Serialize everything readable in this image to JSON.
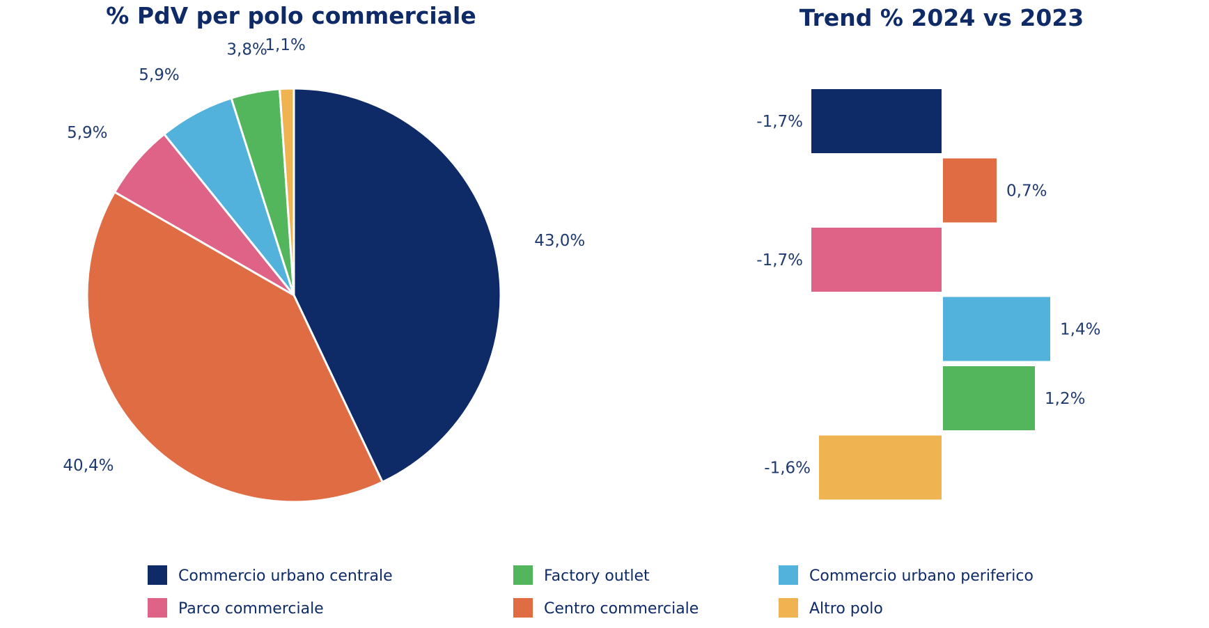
{
  "pie_title": "% PdV per polo commerciale",
  "bar_title": "Trend % 2024 vs 2023",
  "colors": {
    "title": "#0e2a67",
    "label": "#1f3a6e",
    "slice_border": "#ffffff"
  },
  "chart_data": [
    {
      "type": "pie",
      "title": "% PdV per polo commerciale",
      "categories": [
        "Commercio urbano centrale",
        "Centro commerciale",
        "Parco commerciale",
        "Commercio urbano periferico",
        "Factory outlet",
        "Altro polo"
      ],
      "values": [
        43.0,
        40.4,
        5.9,
        5.9,
        3.8,
        1.1
      ],
      "value_labels": [
        "43,0%",
        "40,4%",
        "5,9%",
        "5,9%",
        "3,8%",
        "1,1%"
      ],
      "colors": [
        "#0e2a67",
        "#e06c43",
        "#df6287",
        "#52b2dc",
        "#54b65c",
        "#f0b351"
      ],
      "start_angle_deg": 0,
      "direction": "clockwise"
    },
    {
      "type": "bar",
      "orientation": "horizontal",
      "title": "Trend % 2024 vs 2023",
      "categories": [
        "Commercio urbano centrale",
        "Centro commerciale",
        "Parco commerciale",
        "Commercio urbano periferico",
        "Factory outlet",
        "Altro polo"
      ],
      "values": [
        -1.7,
        0.7,
        -1.7,
        1.4,
        1.2,
        -1.6
      ],
      "value_labels": [
        "-1,7%",
        "0,7%",
        "-1,7%",
        "1,4%",
        "1,2%",
        "-1,6%"
      ],
      "colors": [
        "#0e2a67",
        "#e06c43",
        "#df6287",
        "#52b2dc",
        "#54b65c",
        "#f0b351"
      ],
      "grid": false,
      "axes_visible": false
    }
  ],
  "legend": {
    "placement": "bottom",
    "items": [
      {
        "label": "Commercio urbano centrale",
        "color": "#0e2a67"
      },
      {
        "label": "Factory outlet",
        "color": "#54b65c"
      },
      {
        "label": "Commercio urbano periferico",
        "color": "#52b2dc"
      },
      {
        "label": "Parco commerciale",
        "color": "#df6287"
      },
      {
        "label": "Centro commerciale",
        "color": "#e06c43"
      },
      {
        "label": "Altro polo",
        "color": "#f0b351"
      }
    ]
  }
}
